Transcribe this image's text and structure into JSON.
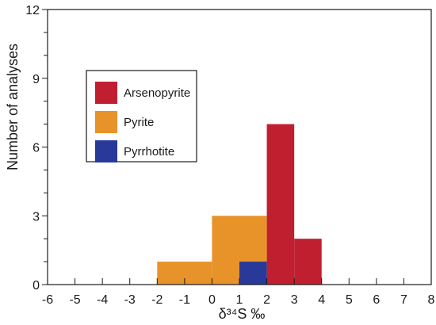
{
  "chart_data": {
    "type": "bar",
    "title": "",
    "xlabel": "δ³⁴S ‰",
    "ylabel": "Number of analyses",
    "xlim": [
      -6,
      8
    ],
    "ylim": [
      0,
      12
    ],
    "x_ticks": [
      "-6",
      "-5",
      "-4",
      "-3",
      "-2",
      "-1",
      "0",
      "1",
      "2",
      "3",
      "4",
      "5",
      "6",
      "7",
      "8"
    ],
    "y_ticks": [
      "0",
      "3",
      "6",
      "9",
      "12"
    ],
    "grid": false,
    "legend_position": "upper-left",
    "series": [
      {
        "name": "Arsenopyrite",
        "color": "#c01f30",
        "bins": [
          {
            "x0": 2,
            "x1": 3,
            "count": 7
          },
          {
            "x0": 3,
            "x1": 4,
            "count": 2
          }
        ]
      },
      {
        "name": "Pyrite",
        "color": "#e8922a",
        "bins": [
          {
            "x0": -2,
            "x1": 0,
            "count": 1
          },
          {
            "x0": 0,
            "x1": 1,
            "count": 3
          },
          {
            "x0": 1,
            "x1": 2,
            "count": 3
          }
        ]
      },
      {
        "name": "Pyrrhotite",
        "color": "#28399a",
        "bins": [
          {
            "x0": 1,
            "x1": 2,
            "count": 1
          }
        ]
      }
    ]
  }
}
